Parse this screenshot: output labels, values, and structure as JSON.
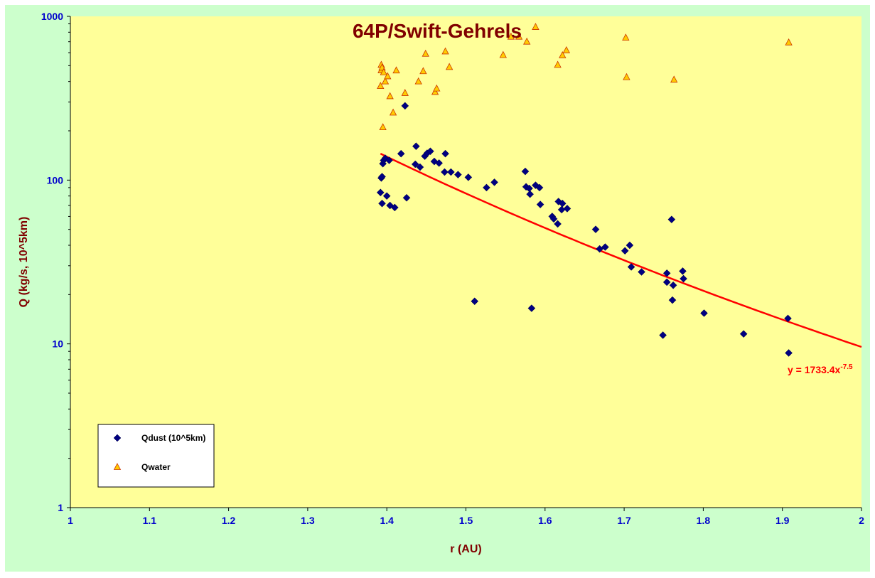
{
  "chart_data": {
    "type": "scatter",
    "title": "64P/Swift-Gehrels",
    "xlabel": "r (AU)",
    "ylabel": "Q (kg/s, 10^5km)",
    "xlim": [
      1,
      2
    ],
    "ylim": [
      1,
      1000
    ],
    "yscale": "log",
    "x_ticks": [
      "1",
      "1.1",
      "1.2",
      "1.3",
      "1.4",
      "1.5",
      "1.6",
      "1.7",
      "1.8",
      "1.9",
      "2"
    ],
    "y_ticks": [
      "1",
      "10",
      "100",
      "1000"
    ],
    "grid": false,
    "legend_position": "bottom-left",
    "colors": {
      "plot_background": "#ffff99",
      "outer_background": "#ccffcc",
      "dust": "#000080",
      "water_fill": "#ffcc00",
      "water_edge": "#cc3300",
      "trend": "#ff0000"
    },
    "series": [
      {
        "name": "Qdust (10^5km)",
        "marker": "diamond",
        "points": [
          [
            1.392,
            84
          ],
          [
            1.393,
            103
          ],
          [
            1.394,
            105
          ],
          [
            1.394,
            72
          ],
          [
            1.395,
            126
          ],
          [
            1.396,
            132
          ],
          [
            1.398,
            136
          ],
          [
            1.4,
            80
          ],
          [
            1.403,
            132
          ],
          [
            1.404,
            70
          ],
          [
            1.41,
            68
          ],
          [
            1.418,
            145
          ],
          [
            1.423,
            284
          ],
          [
            1.425,
            78
          ],
          [
            1.436,
            125
          ],
          [
            1.437,
            161
          ],
          [
            1.442,
            120
          ],
          [
            1.448,
            140
          ],
          [
            1.451,
            146
          ],
          [
            1.455,
            150
          ],
          [
            1.46,
            130
          ],
          [
            1.466,
            127
          ],
          [
            1.473,
            112
          ],
          [
            1.474,
            145
          ],
          [
            1.481,
            112
          ],
          [
            1.49,
            108
          ],
          [
            1.503,
            104
          ],
          [
            1.511,
            18.2
          ],
          [
            1.526,
            90
          ],
          [
            1.536,
            97
          ],
          [
            1.575,
            113
          ],
          [
            1.576,
            91
          ],
          [
            1.58,
            89
          ],
          [
            1.581,
            82
          ],
          [
            1.583,
            16.5
          ],
          [
            1.588,
            93
          ],
          [
            1.593,
            90
          ],
          [
            1.594,
            71
          ],
          [
            1.609,
            60
          ],
          [
            1.611,
            58
          ],
          [
            1.616,
            54
          ],
          [
            1.617,
            74
          ],
          [
            1.621,
            66
          ],
          [
            1.622,
            72
          ],
          [
            1.628,
            67
          ],
          [
            1.664,
            50
          ],
          [
            1.669,
            38
          ],
          [
            1.676,
            39
          ],
          [
            1.701,
            37
          ],
          [
            1.707,
            40
          ],
          [
            1.709,
            29.5
          ],
          [
            1.722,
            27.5
          ],
          [
            1.749,
            11.3
          ],
          [
            1.754,
            27
          ],
          [
            1.754,
            23.8
          ],
          [
            1.76,
            57.5
          ],
          [
            1.761,
            18.5
          ],
          [
            1.762,
            22.8
          ],
          [
            1.774,
            27.8
          ],
          [
            1.775,
            25
          ],
          [
            1.801,
            15.4
          ],
          [
            1.851,
            11.5
          ],
          [
            1.907,
            14.3
          ],
          [
            1.908,
            8.8
          ]
        ]
      },
      {
        "name": "Qwater",
        "marker": "triangle",
        "points": [
          [
            1.392,
            375
          ],
          [
            1.393,
            468
          ],
          [
            1.393,
            505
          ],
          [
            1.394,
            486
          ],
          [
            1.395,
            210
          ],
          [
            1.396,
            455
          ],
          [
            1.398,
            400
          ],
          [
            1.401,
            430
          ],
          [
            1.404,
            325
          ],
          [
            1.408,
            258
          ],
          [
            1.412,
            467
          ],
          [
            1.423,
            340
          ],
          [
            1.44,
            400
          ],
          [
            1.446,
            462
          ],
          [
            1.449,
            590
          ],
          [
            1.461,
            345
          ],
          [
            1.463,
            362
          ],
          [
            1.474,
            610
          ],
          [
            1.479,
            490
          ],
          [
            1.547,
            580
          ],
          [
            1.557,
            750
          ],
          [
            1.567,
            750
          ],
          [
            1.577,
            700
          ],
          [
            1.588,
            860
          ],
          [
            1.616,
            505
          ],
          [
            1.622,
            578
          ],
          [
            1.627,
            620
          ],
          [
            1.702,
            740
          ],
          [
            1.703,
            425
          ],
          [
            1.763,
            410
          ],
          [
            1.908,
            692
          ]
        ]
      }
    ],
    "trendline": {
      "series": "Qdust (10^5km)",
      "type": "power",
      "coefficient": 1733.4,
      "exponent": -7.5,
      "x_range": [
        1.392,
        2
      ],
      "label_main": "y = 1733.4x",
      "label_exp": "-7.5"
    }
  }
}
